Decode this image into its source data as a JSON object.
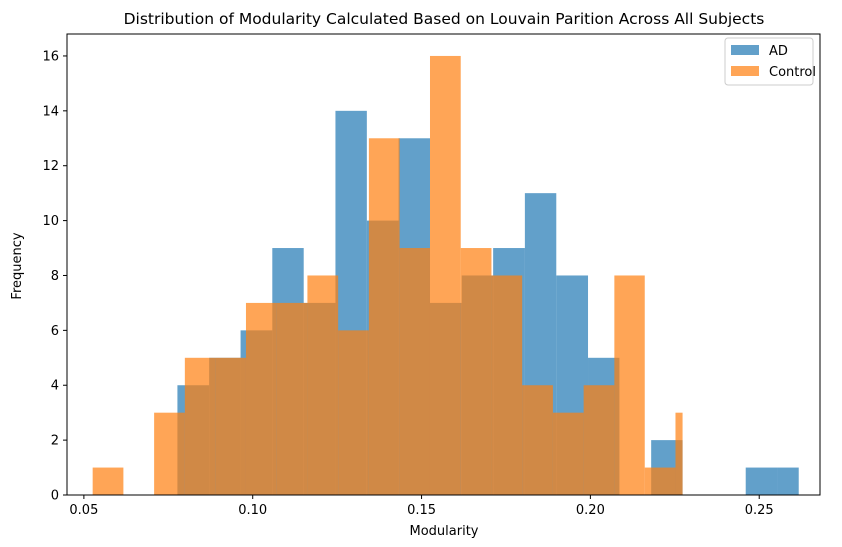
{
  "chart_data": {
    "type": "bar",
    "subtype": "overlaid-histogram",
    "title": "Distribution of Modularity Calculated Based on Louvain Parition Across All Subjects",
    "xlabel": "Modularity",
    "ylabel": "Frequency",
    "xlim": [
      0.045,
      0.268
    ],
    "ylim": [
      0,
      16.8
    ],
    "xticks": [
      "0.05",
      "0.10",
      "0.15",
      "0.20",
      "0.25"
    ],
    "xtick_values": [
      0.05,
      0.1,
      0.15,
      0.2,
      0.25
    ],
    "yticks": [
      "0",
      "2",
      "4",
      "6",
      "8",
      "10",
      "12",
      "14",
      "16"
    ],
    "ytick_values": [
      0,
      2,
      4,
      6,
      8,
      10,
      12,
      14,
      16
    ],
    "grid": false,
    "legend_position": "top-right",
    "series": [
      {
        "name": "AD",
        "color": "#1f77b4",
        "alpha": 0.7,
        "bin_edges": [
          0.0777,
          0.0871,
          0.0964,
          0.1058,
          0.1151,
          0.1245,
          0.1338,
          0.1432,
          0.1525,
          0.1619,
          0.1712,
          0.1806,
          0.1899,
          0.1993,
          0.2086,
          0.218,
          0.2273,
          0.2367,
          0.246,
          0.2554,
          0.2617
        ],
        "counts": [
          4,
          5,
          6,
          9,
          7,
          14,
          10,
          13,
          7,
          8,
          9,
          11,
          8,
          5,
          0,
          2,
          0,
          0,
          1,
          1
        ]
      },
      {
        "name": "Control",
        "color": "#ff7f0e",
        "alpha": 0.7,
        "bin_edges": [
          0.0526,
          0.0617,
          0.0708,
          0.0799,
          0.0889,
          0.098,
          0.1071,
          0.1162,
          0.1253,
          0.1344,
          0.1435,
          0.1525,
          0.1616,
          0.1707,
          0.1798,
          0.1889,
          0.198,
          0.2071,
          0.2161,
          0.2252,
          0.2273
        ],
        "counts": [
          1,
          0,
          3,
          5,
          5,
          7,
          7,
          8,
          6,
          13,
          9,
          16,
          9,
          8,
          4,
          3,
          4,
          8,
          1,
          3
        ]
      }
    ]
  }
}
